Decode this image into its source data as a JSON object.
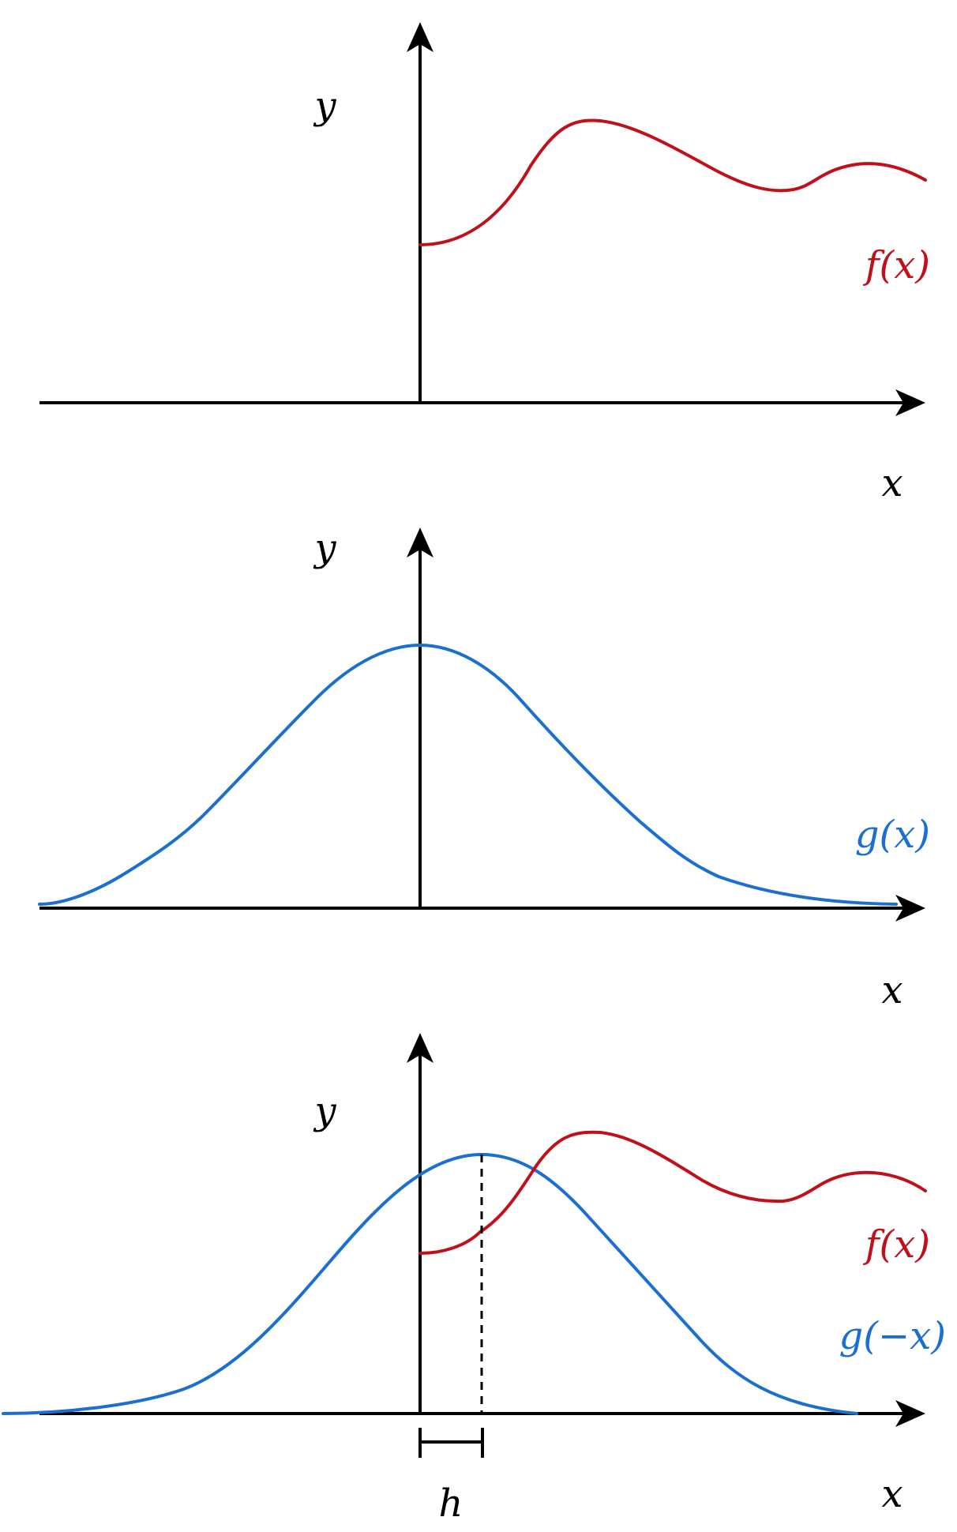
{
  "colors": {
    "f": "#c0111b",
    "g": "#1a6fd0",
    "axis": "#000000"
  },
  "panels": [
    {
      "y_label": "y",
      "x_label": "x",
      "curve_labels": [
        {
          "text": "f(x)",
          "color": "#c0111b"
        }
      ]
    },
    {
      "y_label": "y",
      "x_label": "x",
      "curve_labels": [
        {
          "text": "g(x)",
          "color": "#1a6fd0"
        }
      ]
    },
    {
      "y_label": "y",
      "x_label": "x",
      "curve_labels": [
        {
          "text": "f(x)",
          "color": "#c0111b"
        },
        {
          "text": "g(−x)",
          "color": "#1a6fd0"
        }
      ],
      "shift_label": "h"
    }
  ]
}
